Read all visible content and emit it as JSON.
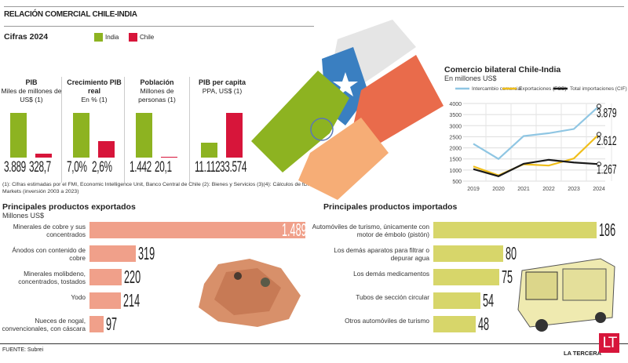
{
  "header": {
    "title": "RELACIÓN COMERCIAL CHILE-INDIA",
    "section": "Cifras 2024"
  },
  "legend": {
    "india": "India",
    "chile": "Chile",
    "india_color": "#8db321",
    "chile_color": "#d7153a"
  },
  "indicators": [
    {
      "title": "PIB",
      "subtitle": "Miles de millones de US$ (1)",
      "india": 3889,
      "chile": 328.7,
      "india_label": "3.889",
      "chile_label": "328,7"
    },
    {
      "title": "Crecimiento PIB real",
      "subtitle": "En % (1)",
      "india": 7.0,
      "chile": 2.6,
      "india_label": "7,0%",
      "chile_label": "2,6%"
    },
    {
      "title": "Población",
      "subtitle": "Millones de personas (1)",
      "india": 1442,
      "chile": 20.1,
      "india_label": "1.442",
      "chile_label": "20,1"
    },
    {
      "title": "PIB per capita",
      "subtitle": "PPA, US$ (1)",
      "india": 11112,
      "chile": 33574,
      "india_label": "11.112",
      "chile_label": "33.574"
    }
  ],
  "footnote": "(1): Cifras estimadas por el FMI, Economic Intelligence Unit, Banco Central de Chile (2): Bienes y Servicios (3)(4): Cálculos de fDi Markets (inversión 2003 a 2023)",
  "chart_data": [
    {
      "type": "line",
      "title": "Comercio bilateral Chile-India",
      "subtitle": "En millones US$",
      "x": [
        2019,
        2020,
        2021,
        2022,
        2023,
        2024
      ],
      "ylim": [
        500,
        4000
      ],
      "yticks": [
        500,
        1000,
        1500,
        2000,
        2500,
        3000,
        3500,
        4000
      ],
      "grid": true,
      "legend": "top",
      "series": [
        {
          "name": "Intercambio comercial",
          "color": "#8fc6e3",
          "values": [
            2180,
            1500,
            2530,
            2660,
            2850,
            3879
          ],
          "end_label": "3.879"
        },
        {
          "name": "Exportaciones (FOB)",
          "color": "#f0be1a",
          "values": [
            1160,
            760,
            1260,
            1200,
            1520,
            2612
          ],
          "end_label": "2.612"
        },
        {
          "name": "Total importaciones (CIF)",
          "color": "#1a1a1a",
          "values": [
            1040,
            720,
            1280,
            1460,
            1340,
            1267
          ],
          "end_label": "1.267"
        }
      ]
    },
    {
      "type": "bar",
      "title": "Principales productos exportados",
      "subtitle": "Millones US$",
      "color": "#f0a08a",
      "categories": [
        "Minerales de cobre y sus concentrados",
        "Ánodos con contenido de cobre",
        "Minerales molibdeno, concentrados, tostados",
        "Yodo",
        "Nueces de nogal, convencionales, con cáscara"
      ],
      "values": [
        1489,
        319,
        220,
        214,
        97
      ],
      "labels": [
        "1.489",
        "319",
        "220",
        "214",
        "97"
      ]
    },
    {
      "type": "bar",
      "title": "Principales productos importados",
      "color": "#d7d66a",
      "categories": [
        "Automóviles de turismo, únicamente con motor de émbolo (pistón)",
        "Los demás aparatos para filtrar o depurar agua",
        "Los demás medicamentos",
        "Tubos de sección circular",
        "Otros automóviles de turismo"
      ],
      "values": [
        186,
        80,
        75,
        54,
        48
      ],
      "labels": [
        "186",
        "80",
        "75",
        "54",
        "48"
      ]
    }
  ],
  "footer": {
    "source": "FUENTE: Subrei",
    "brand": "LA TERCERA",
    "logo": "LT"
  }
}
